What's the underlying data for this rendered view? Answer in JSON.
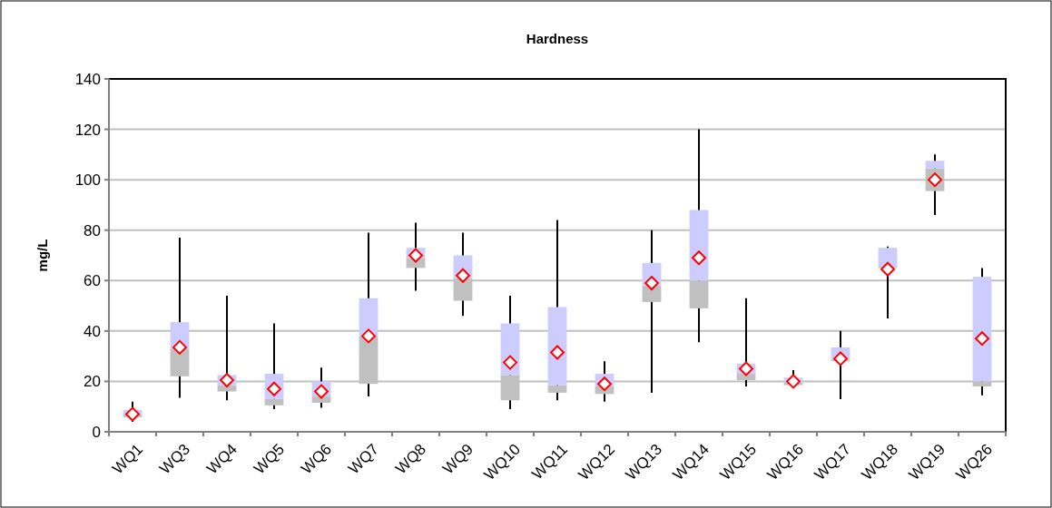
{
  "chart_data": {
    "type": "box",
    "title": "Hardness",
    "ylabel": "mg/L",
    "categories": [
      "WQ1",
      "WQ3",
      "WQ4",
      "WQ5",
      "WQ6",
      "WQ7",
      "WQ8",
      "WQ9",
      "WQ10",
      "WQ11",
      "WQ12",
      "WQ13",
      "WQ14",
      "WQ15",
      "WQ16",
      "WQ17",
      "WQ18",
      "WQ19",
      "WQ26"
    ],
    "boxes": [
      {
        "low": 4,
        "q1": 5.8,
        "median": 7,
        "q3": 8.7,
        "high": 12,
        "mean": 7
      },
      {
        "low": 13.5,
        "q1": 22,
        "median": 33,
        "q3": 43.5,
        "high": 77,
        "mean": 33.5
      },
      {
        "low": 12.5,
        "q1": 16,
        "median": 18.5,
        "q3": 22.5,
        "high": 54,
        "mean": 20.5
      },
      {
        "low": 9,
        "q1": 10.5,
        "median": 13,
        "q3": 23,
        "high": 43,
        "mean": 17
      },
      {
        "low": 9.5,
        "q1": 11.5,
        "median": 14,
        "q3": 20,
        "high": 25.5,
        "mean": 16
      },
      {
        "low": 14,
        "q1": 19,
        "median": 38,
        "q3": 53,
        "high": 79,
        "mean": 38
      },
      {
        "low": 56,
        "q1": 65,
        "median": 69,
        "q3": 73,
        "high": 83,
        "mean": 70
      },
      {
        "low": 46,
        "q1": 52,
        "median": 61,
        "q3": 70,
        "high": 79,
        "mean": 62
      },
      {
        "low": 9,
        "q1": 12.5,
        "median": 22.5,
        "q3": 43,
        "high": 54,
        "mean": 27.5
      },
      {
        "low": 12.5,
        "q1": 15.5,
        "median": 18.5,
        "q3": 49.5,
        "high": 84,
        "mean": 31.5
      },
      {
        "low": 12,
        "q1": 15,
        "median": 18,
        "q3": 23,
        "high": 28,
        "mean": 19
      },
      {
        "low": 15.5,
        "q1": 51.5,
        "median": 58,
        "q3": 67,
        "high": 80,
        "mean": 59
      },
      {
        "low": 35.5,
        "q1": 49,
        "median": 60,
        "q3": 88,
        "high": 120,
        "mean": 69
      },
      {
        "low": 18,
        "q1": 20.5,
        "median": 23,
        "q3": 27,
        "high": 53,
        "mean": 25
      },
      {
        "low": 18,
        "q1": 18.5,
        "median": 19.5,
        "q3": 21.5,
        "high": 24.5,
        "mean": 20
      },
      {
        "low": 13,
        "q1": 28,
        "median": 28.5,
        "q3": 33.5,
        "high": 40,
        "mean": 29
      },
      {
        "low": 45,
        "q1": 65,
        "median": 65.5,
        "q3": 73,
        "high": 73.5,
        "mean": 64.5
      },
      {
        "low": 86,
        "q1": 95.5,
        "median": 104.5,
        "q3": 107.5,
        "high": 110,
        "mean": 100
      },
      {
        "low": 14.5,
        "q1": 18,
        "median": 20,
        "q3": 61.5,
        "high": 65,
        "mean": 37
      }
    ],
    "ylim": [
      0,
      140
    ],
    "yticks": [
      0,
      20,
      40,
      60,
      80,
      100,
      120,
      140
    ],
    "grid": "y",
    "marker": "diamond"
  }
}
